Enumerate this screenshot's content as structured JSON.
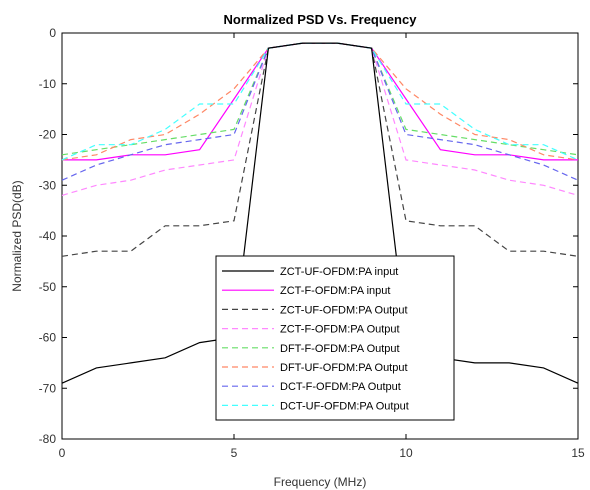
{
  "chart_data": {
    "type": "line",
    "title": "Normalized PSD Vs. Frequency",
    "xlabel": "Frequency (MHz)",
    "ylabel": "Normalized PSD(dB)",
    "xlim": [
      0,
      15
    ],
    "ylim": [
      -80,
      0
    ],
    "xticks": [
      0,
      5,
      10,
      15
    ],
    "yticks": [
      0,
      -10,
      -20,
      -30,
      -40,
      -50,
      -60,
      -70,
      -80
    ],
    "grid": false,
    "legend_position": "bottom-center",
    "series": [
      {
        "name": "ZCT-UF-OFDM:PA input",
        "color": "#000000",
        "dash": "solid",
        "x": [
          0,
          1,
          2,
          3,
          4,
          5,
          6,
          7,
          8,
          9,
          10,
          11,
          12,
          13,
          14,
          15
        ],
        "y": [
          -69,
          -66,
          -65,
          -64,
          -61,
          -60,
          -3,
          -2,
          -2,
          -3,
          -60,
          -64,
          -65,
          -65,
          -66,
          -69
        ]
      },
      {
        "name": "ZCT-F-OFDM:PA input",
        "color": "#ff00ff",
        "dash": "solid",
        "x": [
          0,
          1,
          2,
          3,
          4,
          5,
          6,
          7,
          8,
          9,
          10,
          11,
          12,
          13,
          14,
          15
        ],
        "y": [
          -25,
          -25,
          -24,
          -24,
          -23,
          -13,
          -3,
          -2,
          -2,
          -3,
          -13,
          -23,
          -24,
          -24,
          -25,
          -25
        ]
      },
      {
        "name": "ZCT-UF-OFDM:PA Output",
        "color": "#444444",
        "dash": "dashed",
        "x": [
          0,
          1,
          2,
          3,
          4,
          5,
          6,
          7,
          8,
          9,
          10,
          11,
          12,
          13,
          14,
          15
        ],
        "y": [
          -44,
          -43,
          -43,
          -38,
          -38,
          -37,
          -3,
          -2,
          -2,
          -3,
          -37,
          -38,
          -38,
          -43,
          -43,
          -44
        ]
      },
      {
        "name": "ZCT-F-OFDM:PA Output",
        "color": "#ff88ff",
        "dash": "dashed",
        "x": [
          0,
          1,
          2,
          3,
          4,
          5,
          6,
          7,
          8,
          9,
          10,
          11,
          12,
          13,
          14,
          15
        ],
        "y": [
          -32,
          -30,
          -29,
          -27,
          -26,
          -25,
          -3,
          -2,
          -2,
          -3,
          -25,
          -26,
          -27,
          -29,
          -30,
          -32
        ]
      },
      {
        "name": "DFT-F-OFDM:PA Output",
        "color": "#66dd66",
        "dash": "dashed",
        "x": [
          0,
          1,
          2,
          3,
          4,
          5,
          6,
          7,
          8,
          9,
          10,
          11,
          12,
          13,
          14,
          15
        ],
        "y": [
          -24,
          -23,
          -22,
          -21,
          -20,
          -19,
          -3,
          -2,
          -2,
          -3,
          -19,
          -20,
          -21,
          -22,
          -23,
          -24
        ]
      },
      {
        "name": "DFT-UF-OFDM:PA Output",
        "color": "#ff8866",
        "dash": "dashed",
        "x": [
          0,
          1,
          2,
          3,
          4,
          5,
          6,
          7,
          8,
          9,
          10,
          11,
          12,
          13,
          14,
          15
        ],
        "y": [
          -25,
          -24,
          -21,
          -20,
          -16,
          -11,
          -3,
          -2,
          -2,
          -3,
          -11,
          -16,
          -20,
          -21,
          -24,
          -25
        ]
      },
      {
        "name": "DCT-F-OFDM:PA Output",
        "color": "#6666ee",
        "dash": "dashed",
        "x": [
          0,
          1,
          2,
          3,
          4,
          5,
          6,
          7,
          8,
          9,
          10,
          11,
          12,
          13,
          14,
          15
        ],
        "y": [
          -29,
          -26,
          -24,
          -22,
          -21,
          -20,
          -3,
          -2,
          -2,
          -3,
          -20,
          -21,
          -22,
          -24,
          -26,
          -29
        ]
      },
      {
        "name": "DCT-UF-OFDM:PA Output",
        "color": "#44ffff",
        "dash": "dashed",
        "x": [
          0,
          1,
          2,
          3,
          4,
          5,
          6,
          7,
          8,
          9,
          10,
          11,
          12,
          13,
          14,
          15
        ],
        "y": [
          -25,
          -22,
          -22,
          -19,
          -14,
          -14,
          -3,
          -2,
          -2,
          -3,
          -14,
          -14,
          -19,
          -22,
          -22,
          -25
        ]
      }
    ]
  }
}
